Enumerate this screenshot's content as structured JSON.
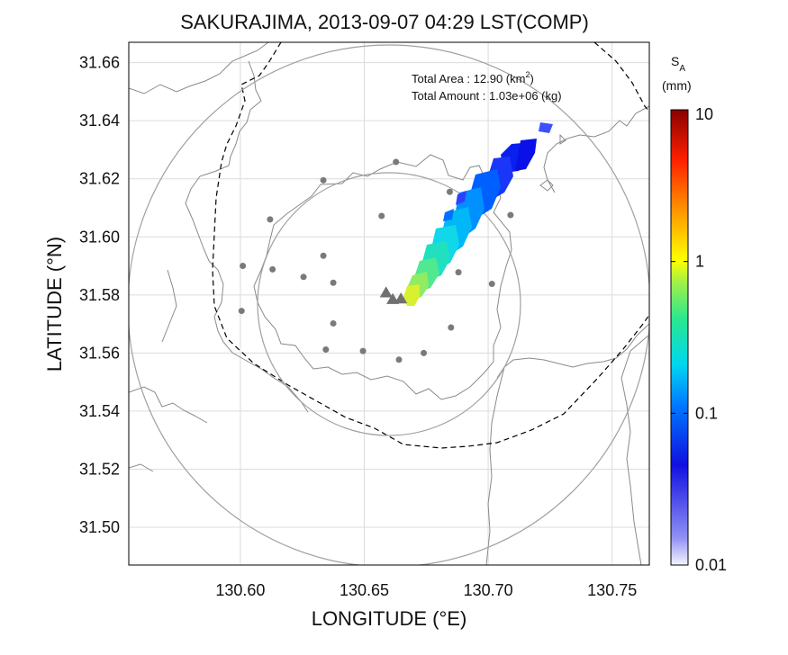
{
  "title": "SAKURAJIMA, 2013-09-07 04:29 LST(COMP)",
  "info": {
    "area_label": "Total Area   : 12.90 (km",
    "area_sup": "2",
    "area_close": ")",
    "amount_label": "Total Amount : 1.03e+06 (kg)"
  },
  "axes": {
    "xlabel": "LONGITUDE (°E)",
    "ylabel": "LATITUDE (°N)",
    "xlim": [
      130.555,
      130.765
    ],
    "ylim": [
      31.487,
      31.667
    ],
    "xticks": [
      "130.60",
      "130.65",
      "130.70",
      "130.75"
    ],
    "xtick_values": [
      130.6,
      130.65,
      130.7,
      130.75
    ],
    "yticks": [
      "31.50",
      "31.52",
      "31.54",
      "31.56",
      "31.58",
      "31.60",
      "31.62",
      "31.64",
      "31.66"
    ],
    "ytick_values": [
      31.5,
      31.52,
      31.54,
      31.56,
      31.58,
      31.6,
      31.62,
      31.64,
      31.66
    ],
    "grid": true
  },
  "colorbar": {
    "label_main": "S",
    "label_sub": "A",
    "unit": "(mm)",
    "ticks": [
      "10",
      "1",
      "0.1",
      "0.01"
    ],
    "scale": "log"
  },
  "map_data": {
    "vents": [
      [
        130.6588,
        31.5808
      ],
      [
        130.6615,
        31.5785
      ],
      [
        130.6648,
        31.5787
      ]
    ],
    "stations": [
      [
        130.6335,
        31.6195
      ],
      [
        130.657,
        31.6072
      ],
      [
        130.6628,
        31.6258
      ],
      [
        130.612,
        31.606
      ],
      [
        130.601,
        31.59
      ],
      [
        130.613,
        31.5888
      ],
      [
        130.6255,
        31.5862
      ],
      [
        130.6335,
        31.5935
      ],
      [
        130.6375,
        31.5842
      ],
      [
        130.6005,
        31.5745
      ],
      [
        130.6375,
        31.5702
      ],
      [
        130.6345,
        31.5612
      ],
      [
        130.6495,
        31.5607
      ],
      [
        130.664,
        31.5577
      ],
      [
        130.674,
        31.56
      ],
      [
        130.685,
        31.5688
      ],
      [
        130.688,
        31.5878
      ],
      [
        130.7015,
        31.5838
      ],
      [
        130.709,
        31.6075
      ],
      [
        130.6845,
        31.6155
      ]
    ],
    "inner_ring": {
      "center": [
        130.6585,
        31.5775
      ],
      "radius_lon": 0.0525
    },
    "outer_ring": {
      "center": [
        130.6585,
        31.5775
      ],
      "radius_lon": 0.105
    },
    "ash_deposit_color_scale": "rainbow-log (0.01 mm to 10 mm)"
  }
}
